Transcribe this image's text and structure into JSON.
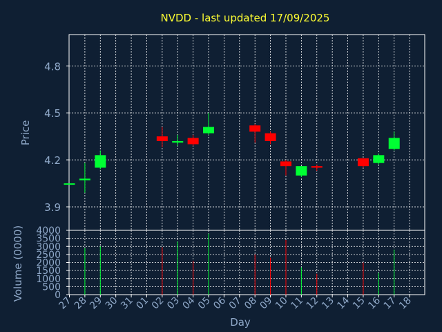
{
  "chart_data": {
    "type": "candlestick",
    "title": "NVDD - last updated 17/09/2025",
    "colors": {
      "background": "#0f1f33",
      "axis": "#ffffff",
      "grid": "#ffffff",
      "tick_label": "#8fa8c8",
      "title": "#ffff33",
      "up": "#00ff33",
      "down": "#ff0000"
    },
    "price_panel": {
      "ylabel": "Price",
      "ylim": [
        3.75,
        5.0
      ],
      "yticks": [
        "3.9",
        "4.2",
        "4.5",
        "4.8"
      ],
      "grid": true
    },
    "volume_panel": {
      "ylabel": "Volume (0000)",
      "ylim": [
        0,
        4000
      ],
      "yticks": [
        "0",
        "500",
        "1000",
        "1500",
        "2000",
        "2500",
        "3000",
        "3500",
        "4000"
      ],
      "grid": true
    },
    "xlabel": "Day",
    "x_ticks": [
      "27",
      "28",
      "29",
      "30",
      "31",
      "01",
      "02",
      "03",
      "04",
      "05",
      "06",
      "07",
      "08",
      "09",
      "10",
      "11",
      "12",
      "13",
      "14",
      "15",
      "16",
      "17",
      "18"
    ],
    "candles": [
      {
        "day": "27",
        "open": 4.05,
        "close": 4.05,
        "high": 4.05,
        "low": 4.05,
        "volume": 0
      },
      {
        "day": "28",
        "open": 4.07,
        "close": 4.08,
        "high": 4.18,
        "low": 3.99,
        "volume": 2900
      },
      {
        "day": "29",
        "open": 4.15,
        "close": 4.23,
        "high": 4.26,
        "low": 4.14,
        "volume": 3000
      },
      {
        "day": "02",
        "open": 4.35,
        "close": 4.32,
        "high": 4.41,
        "low": 4.28,
        "volume": 2950
      },
      {
        "day": "03",
        "open": 4.31,
        "close": 4.32,
        "high": 4.36,
        "low": 4.29,
        "volume": 3300
      },
      {
        "day": "04",
        "open": 4.34,
        "close": 4.3,
        "high": 4.36,
        "low": 4.29,
        "volume": 2100
      },
      {
        "day": "05",
        "open": 4.37,
        "close": 4.41,
        "high": 4.5,
        "low": 4.36,
        "volume": 3800
      },
      {
        "day": "08",
        "open": 4.42,
        "close": 4.38,
        "high": 4.43,
        "low": 4.31,
        "volume": 2500
      },
      {
        "day": "09",
        "open": 4.37,
        "close": 4.32,
        "high": 4.38,
        "low": 4.3,
        "volume": 2300
      },
      {
        "day": "10",
        "open": 4.19,
        "close": 4.16,
        "high": 4.2,
        "low": 4.1,
        "volume": 3400
      },
      {
        "day": "11",
        "open": 4.1,
        "close": 4.16,
        "high": 4.16,
        "low": 4.09,
        "volume": 1700
      },
      {
        "day": "12",
        "open": 4.16,
        "close": 4.15,
        "high": 4.17,
        "low": 4.13,
        "volume": 1300
      },
      {
        "day": "15",
        "open": 4.21,
        "close": 4.16,
        "high": 4.21,
        "low": 4.15,
        "volume": 2000
      },
      {
        "day": "16",
        "open": 4.18,
        "close": 4.23,
        "high": 4.24,
        "low": 4.17,
        "volume": 1350
      },
      {
        "day": "17",
        "open": 4.27,
        "close": 4.34,
        "high": 4.38,
        "low": 4.26,
        "volume": 2800
      }
    ]
  }
}
